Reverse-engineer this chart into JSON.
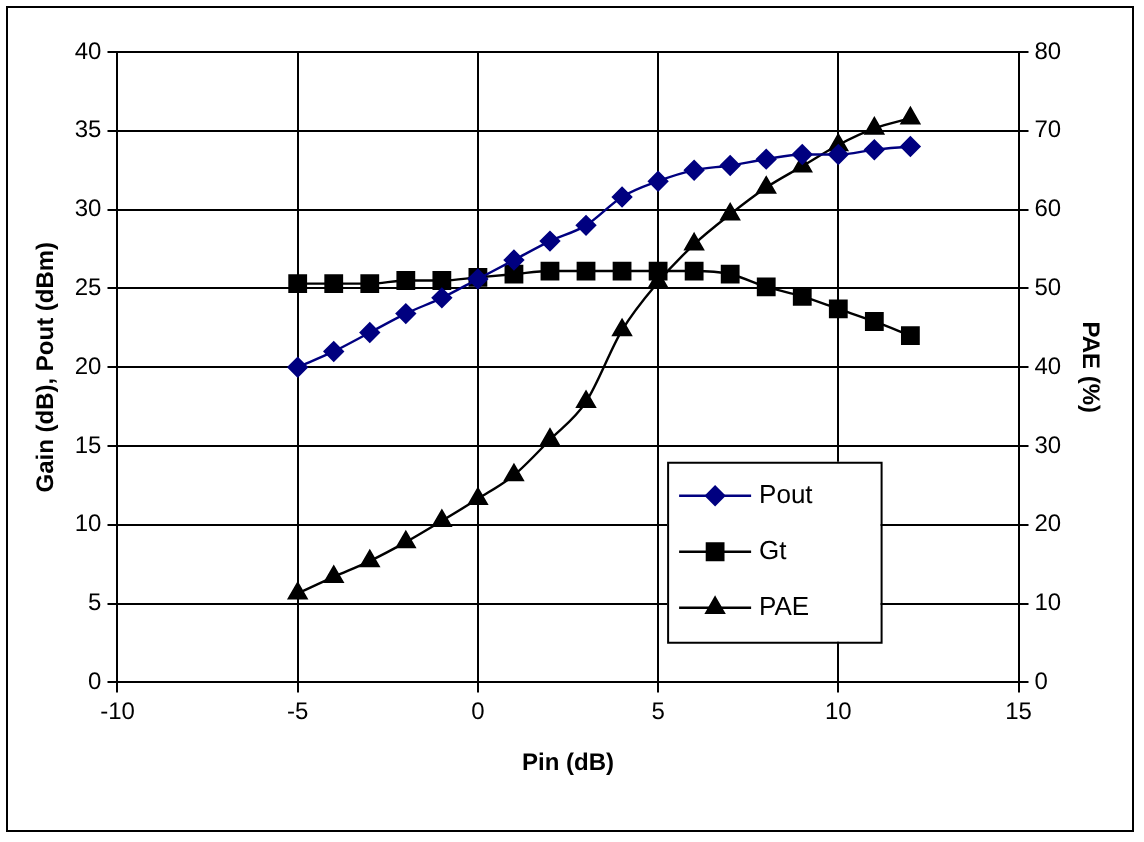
{
  "chart_data": {
    "type": "line",
    "xlabel": "Pin (dB)",
    "ylabel": "Gain (dB), Pout (dBm)",
    "y2label": "PAE (%)",
    "x": [
      -5,
      -4,
      -3,
      -2,
      -1,
      0,
      1,
      2,
      3,
      4,
      5,
      6,
      7,
      8,
      9,
      10,
      11,
      12
    ],
    "series": [
      {
        "name": "Pout",
        "color": "#000080",
        "marker": "diamond",
        "values": [
          20.0,
          21.0,
          22.2,
          23.4,
          24.4,
          25.6,
          26.8,
          28.0,
          29.0,
          30.8,
          31.8,
          32.5,
          32.8,
          33.2,
          33.5,
          33.5,
          33.8,
          34.0
        ]
      },
      {
        "name": "Gt",
        "color": "#000000",
        "marker": "square",
        "values": [
          25.3,
          25.3,
          25.3,
          25.5,
          25.5,
          25.7,
          25.9,
          26.1,
          26.1,
          26.1,
          26.1,
          26.1,
          25.9,
          25.1,
          24.5,
          23.7,
          22.9,
          22.0
        ]
      },
      {
        "name": "PAE",
        "color": "#000000",
        "marker": "triangle",
        "axis": "y2",
        "values": [
          11.3,
          13.4,
          15.4,
          17.8,
          20.5,
          23.3,
          26.3,
          30.8,
          35.6,
          44.7,
          50.8,
          55.6,
          59.4,
          62.8,
          65.5,
          68.2,
          70.3,
          71.6
        ]
      }
    ],
    "xlim": [
      -10,
      15
    ],
    "xticks": [
      -10,
      -5,
      0,
      5,
      10,
      15
    ],
    "ylim": [
      0,
      40
    ],
    "yticks": [
      0,
      5,
      10,
      15,
      20,
      25,
      30,
      35,
      40
    ],
    "y2lim": [
      0,
      80
    ],
    "y2ticks": [
      0,
      10,
      20,
      30,
      40,
      50,
      60,
      70,
      80
    ],
    "grid": true,
    "legend": "right",
    "line_style": "solid"
  }
}
